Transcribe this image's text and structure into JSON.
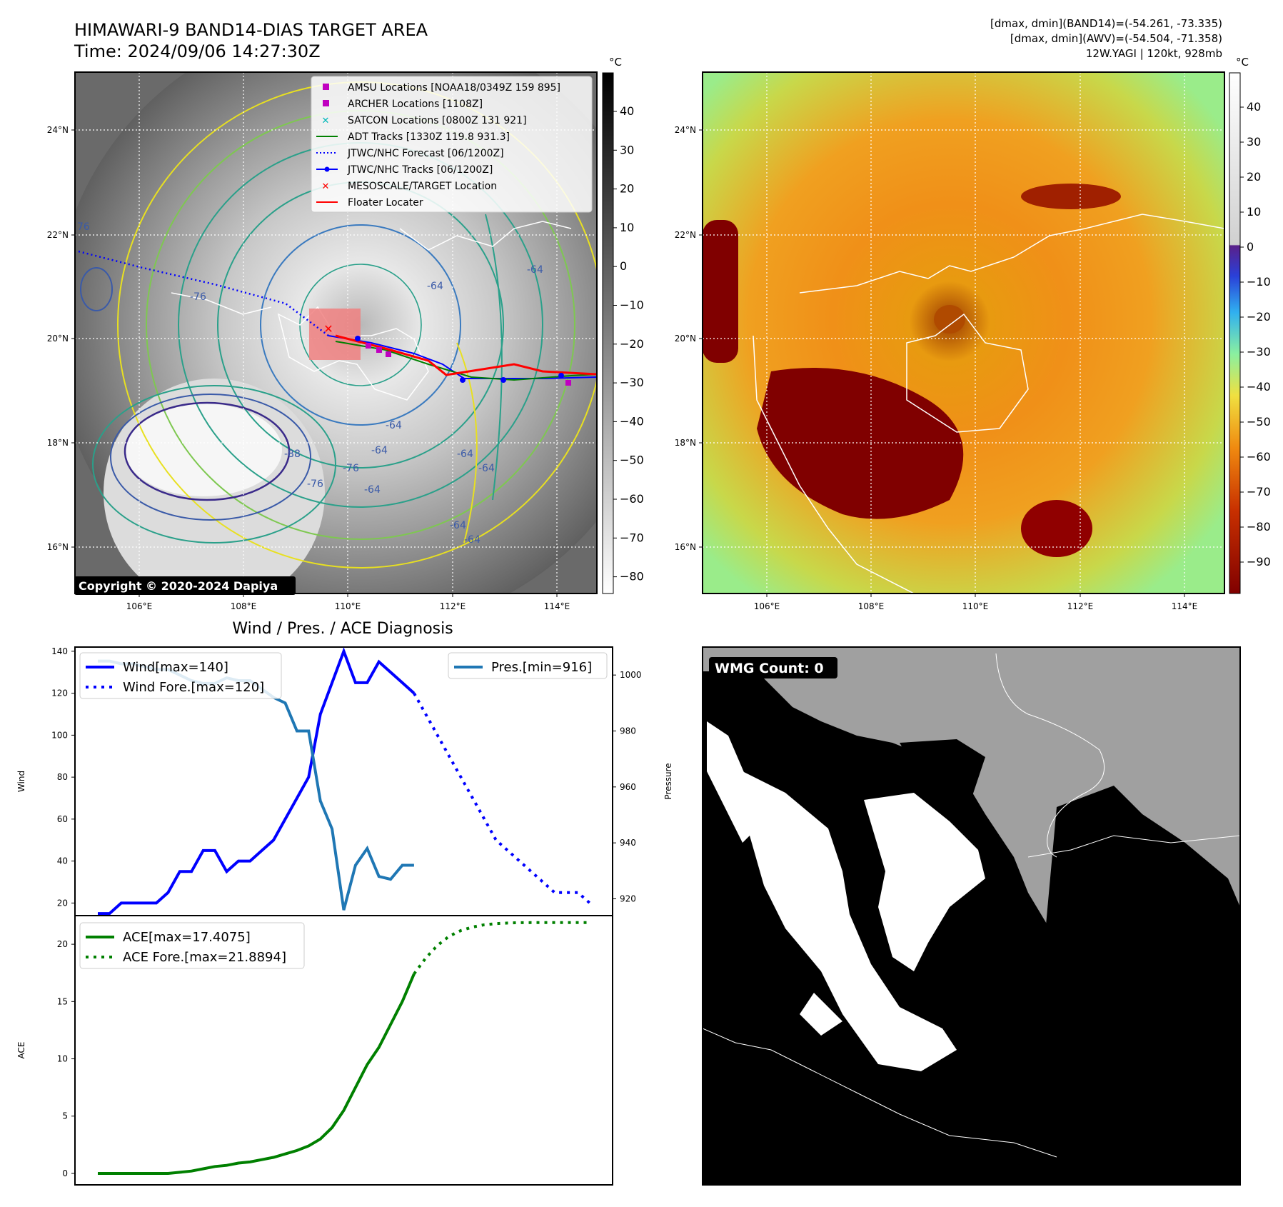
{
  "header": {
    "title_line1": "HIMAWARI-9 BAND14-DIAS TARGET AREA",
    "title_line2": "Time: 2024/09/06 14:27:30Z",
    "info_line1": "[dmax, dmin](BAND14)=(-54.261, -73.335)",
    "info_line2": "[dmax, dmin](AWV)=(-54.504, -71.358)",
    "info_line3": "12W.YAGI | 120kt, 928mb"
  },
  "map": {
    "lon_labels": [
      "106°E",
      "108°E",
      "110°E",
      "112°E",
      "114°E"
    ],
    "lat_labels": [
      "24°N",
      "22°N",
      "20°N",
      "18°N",
      "16°N"
    ],
    "copyright": "Copyright © 2020-2024 Dapiya",
    "contour_labels": [
      "76",
      "-64",
      "-64",
      "-76",
      "-64",
      "-64",
      "-64",
      "-64",
      "-88",
      "-76",
      "-76",
      "-64",
      "-64",
      "-64"
    ],
    "legend": [
      {
        "label": "AMSU Locations [NOAA18/0349Z 159 895]",
        "symbol": "square",
        "color": "#c000c0"
      },
      {
        "label": "ARCHER Locations [1108Z]",
        "symbol": "square",
        "color": "#c000c0"
      },
      {
        "label": "SATCON Locations [0800Z 131 921]",
        "symbol": "x",
        "color": "#00b8b8"
      },
      {
        "label": "ADT Tracks [1330Z 119.8 931.3]",
        "symbol": "line",
        "color": "#008000"
      },
      {
        "label": "JTWC/NHC Forecast [06/1200Z]",
        "symbol": "dotted",
        "color": "#0000ff"
      },
      {
        "label": "JTWC/NHC Tracks [06/1200Z]",
        "symbol": "line-dot",
        "color": "#0000ff"
      },
      {
        "label": "MESOSCALE/TARGET Location",
        "symbol": "x",
        "color": "#ff0000"
      },
      {
        "label": "Floater Locater",
        "symbol": "line",
        "color": "#ff0000"
      }
    ]
  },
  "colorbar_gray": {
    "unit": "°C",
    "ticks": [
      "40",
      "30",
      "20",
      "10",
      "0",
      "−10",
      "−20",
      "−30",
      "−40",
      "−50",
      "−60",
      "−70",
      "−80"
    ]
  },
  "colorbar_color": {
    "unit": "°C",
    "ticks": [
      "40",
      "30",
      "20",
      "10",
      "0",
      "−10",
      "−20",
      "−30",
      "−40",
      "−50",
      "−60",
      "−70",
      "−80",
      "−90"
    ]
  },
  "wmg": {
    "label": "WMG Count: 0"
  },
  "chart_data": [
    {
      "type": "line",
      "title": "Wind / Pres. / ACE Diagnosis",
      "ylabel": "Wind",
      "y2label": "Pressure",
      "ylim": [
        14,
        142
      ],
      "y2lim": [
        914,
        1010
      ],
      "yticks": [
        20,
        40,
        60,
        80,
        100,
        120,
        140
      ],
      "y2ticks": [
        920,
        940,
        960,
        980,
        1000
      ],
      "series": [
        {
          "name": "Wind[max=140]",
          "color": "#0000ff",
          "style": "solid",
          "values": [
            15,
            15,
            20,
            20,
            20,
            20,
            25,
            35,
            35,
            45,
            45,
            35,
            40,
            40,
            45,
            50,
            60,
            70,
            80,
            110,
            125,
            140,
            125,
            125,
            135,
            130,
            125,
            120
          ]
        },
        {
          "name": "Wind Fore.[max=120]",
          "color": "#0000ff",
          "style": "dotted",
          "values": [
            null,
            null,
            null,
            null,
            null,
            null,
            null,
            null,
            null,
            null,
            null,
            null,
            null,
            null,
            null,
            null,
            null,
            null,
            null,
            null,
            null,
            null,
            null,
            null,
            null,
            null,
            null,
            120,
            110,
            100,
            90,
            80,
            70,
            60,
            50,
            45,
            40,
            35,
            30,
            25,
            25,
            25,
            20
          ]
        },
        {
          "name": "Pres.[min=916]",
          "color": "#1f77b4",
          "style": "solid",
          "axis": "right",
          "values": [
            1005,
            1005,
            1004,
            1004,
            1003,
            1002,
            1002,
            1000,
            998,
            997,
            997,
            999,
            998,
            998,
            995,
            992,
            990,
            980,
            980,
            955,
            945,
            916,
            932,
            938,
            928,
            927,
            932,
            932
          ]
        }
      ]
    },
    {
      "type": "line",
      "ylabel": "ACE",
      "ylim": [
        -1,
        22.5
      ],
      "yticks": [
        0,
        5,
        10,
        15,
        20
      ],
      "series": [
        {
          "name": "ACE[max=17.4075]",
          "color": "#008000",
          "style": "solid",
          "values": [
            0,
            0,
            0,
            0,
            0,
            0,
            0,
            0.1,
            0.2,
            0.4,
            0.6,
            0.7,
            0.9,
            1.0,
            1.2,
            1.4,
            1.7,
            2.0,
            2.4,
            3.0,
            4.0,
            5.5,
            7.5,
            9.5,
            11.0,
            13.0,
            15.0,
            17.4075
          ]
        },
        {
          "name": "ACE Fore.[max=21.8894]",
          "color": "#008000",
          "style": "dotted",
          "values": [
            null,
            null,
            null,
            null,
            null,
            null,
            null,
            null,
            null,
            null,
            null,
            null,
            null,
            null,
            null,
            null,
            null,
            null,
            null,
            null,
            null,
            null,
            null,
            null,
            null,
            null,
            null,
            17.4075,
            18.8,
            19.9,
            20.7,
            21.2,
            21.5,
            21.7,
            21.8,
            21.85,
            21.88,
            21.89,
            21.89,
            21.89,
            21.89,
            21.89,
            21.8894
          ]
        }
      ]
    }
  ]
}
